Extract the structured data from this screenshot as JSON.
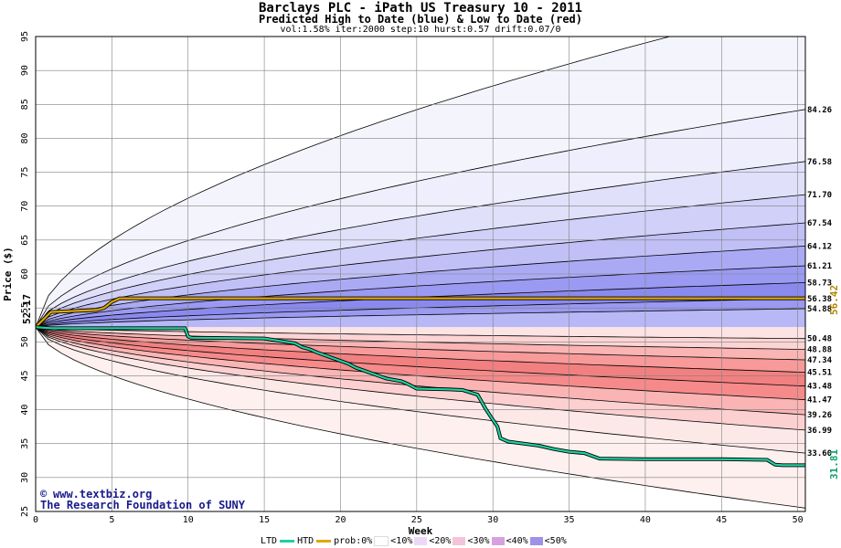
{
  "chart_data": {
    "type": "area",
    "title": "Barclays PLC - iPath US Treasury 10 - 2011",
    "subtitle": "Predicted High to Date (blue) &  Low to Date (red)",
    "params": "vol:1.58% iter:2000 step:10 hurst:0.57 drift:0.07/0",
    "xlabel": "Week",
    "ylabel": "Price ($)",
    "xlim": [
      0,
      50.5
    ],
    "ylim": [
      25,
      95
    ],
    "xticks": [
      0,
      5,
      10,
      15,
      20,
      25,
      30,
      35,
      40,
      45,
      50
    ],
    "yticks": [
      25,
      30,
      35,
      40,
      45,
      50,
      55,
      60,
      65,
      70,
      75,
      80,
      85,
      90,
      95
    ],
    "grid": true,
    "start_price": 52.17,
    "start_label": "52.17",
    "high_bands": [
      {
        "value": 84.26,
        "label": "84.26",
        "color": "#eeeefc"
      },
      {
        "value": 76.58,
        "label": "76.58",
        "color": "#e0e0fa"
      },
      {
        "value": 71.7,
        "label": "71.70",
        "color": "#d0d0f8"
      },
      {
        "value": 67.54,
        "label": "67.54",
        "color": "#c0c0f6"
      },
      {
        "value": 64.12,
        "label": "64.12",
        "color": "#aaaaf4"
      },
      {
        "value": 61.21,
        "label": "61.21",
        "color": "#9a9af2"
      },
      {
        "value": 58.73,
        "label": "58.73",
        "color": "#8a8aee"
      },
      {
        "value": 56.38,
        "label": "56.38",
        "color": "#9a9af2"
      },
      {
        "value": 54.88,
        "label": "54.88",
        "color": "#b8b8f6"
      }
    ],
    "low_bands": [
      {
        "value": 50.48,
        "label": "50.48",
        "color": "#fde4e4"
      },
      {
        "value": 48.88,
        "label": "48.88",
        "color": "#fcd4d4"
      },
      {
        "value": 47.34,
        "label": "47.34",
        "color": "#fab4b4"
      },
      {
        "value": 45.51,
        "label": "45.51",
        "color": "#f89a9a"
      },
      {
        "value": 43.48,
        "label": "43.48",
        "color": "#f28080"
      },
      {
        "value": 41.47,
        "label": "41.47",
        "color": "#f68a8a"
      },
      {
        "value": 39.26,
        "label": "39.26",
        "color": "#fab4b4"
      },
      {
        "value": 36.99,
        "label": "36.99",
        "color": "#fcd0d0"
      },
      {
        "value": 33.6,
        "label": "33.60",
        "color": "#fde8e8"
      }
    ],
    "outer_high": 100,
    "outer_low": 25.5,
    "series": [
      {
        "name": "HTD",
        "color": "#e0a800",
        "end_label": "56.42",
        "x": [
          0,
          1,
          2,
          3,
          4,
          4.5,
          5,
          5.5,
          6,
          10,
          20,
          30,
          40,
          50.5
        ],
        "y": [
          52.17,
          54.4,
          54.5,
          54.6,
          54.7,
          55.0,
          55.9,
          56.4,
          56.42,
          56.42,
          56.42,
          56.42,
          56.42,
          56.42
        ]
      },
      {
        "name": "LTD",
        "color": "#20d0a0",
        "end_label": "31.81",
        "x": [
          0,
          1,
          5,
          9.8,
          10,
          10.2,
          15,
          17,
          17.5,
          18,
          18.5,
          19,
          19.5,
          20,
          20.5,
          21,
          21.5,
          22,
          22.5,
          23,
          24,
          24.5,
          25,
          27,
          28,
          29,
          29.5,
          30,
          30.3,
          30.5,
          31,
          32,
          33,
          34,
          35,
          36,
          37,
          40,
          45,
          48,
          48.5,
          49,
          50.5
        ],
        "y": [
          52.17,
          52.0,
          52.0,
          52.0,
          50.8,
          50.6,
          50.5,
          49.8,
          49.2,
          48.9,
          48.4,
          48.0,
          47.6,
          47.2,
          46.8,
          46.2,
          45.8,
          45.4,
          45.0,
          44.6,
          44.2,
          43.7,
          43.1,
          43.0,
          42.9,
          42.2,
          40.2,
          38.5,
          37.5,
          35.8,
          35.3,
          35.0,
          34.7,
          34.2,
          33.8,
          33.6,
          32.8,
          32.7,
          32.7,
          32.6,
          31.9,
          31.81,
          31.81
        ]
      }
    ]
  },
  "watermark": {
    "line1": "www.textbiz.org",
    "copyright": "©",
    "line2": "The Research Foundation of SUNY"
  },
  "legend": {
    "ltd": "LTD",
    "htd": "HTD",
    "prob": "prob:0%",
    "items": [
      {
        "label": "<10%",
        "color": "#ffffff"
      },
      {
        "label": "<20%",
        "color": "#ecd8f4"
      },
      {
        "label": "<30%",
        "color": "#f2c4dc"
      },
      {
        "label": "<40%",
        "color": "#d8a0e0"
      },
      {
        "label": "<50%",
        "color": "#a090e8"
      }
    ]
  }
}
